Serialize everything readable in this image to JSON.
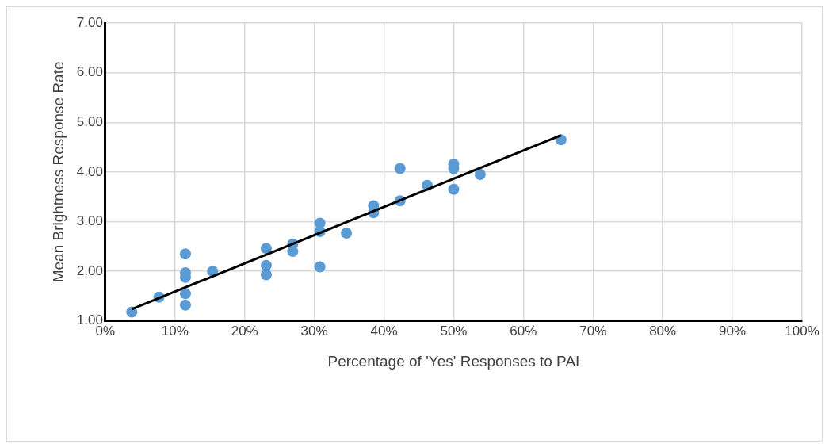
{
  "chart_data": {
    "type": "scatter",
    "xlabel": "Percentage of 'Yes' Responses to PAI",
    "ylabel": "Mean Brightness Response Rate",
    "x": [
      3.8,
      7.7,
      11.5,
      11.5,
      11.5,
      11.5,
      11.5,
      15.4,
      23.1,
      23.1,
      23.1,
      26.9,
      26.9,
      30.8,
      30.8,
      30.8,
      34.6,
      38.5,
      38.5,
      42.3,
      42.3,
      46.2,
      50,
      50,
      50,
      53.8,
      65.4
    ],
    "series": [
      {
        "color": "#5b9bd5",
        "values": [
          1.18,
          1.48,
          2.35,
          1.97,
          1.88,
          1.55,
          1.32,
          2.0,
          2.46,
          2.12,
          1.93,
          2.55,
          2.4,
          2.97,
          2.8,
          2.09,
          2.77,
          3.32,
          3.18,
          4.07,
          3.42,
          3.73,
          4.16,
          4.07,
          3.65,
          3.95,
          4.65
        ]
      },
      {
        "type": "line",
        "color": "#000000",
        "x": [
          3.8,
          65.4
        ],
        "values": [
          1.24,
          4.74
        ],
        "marker": "none"
      }
    ],
    "xlim": [
      0,
      100
    ],
    "xticks": [
      {
        "value": 0,
        "label": "0%"
      },
      {
        "value": 10,
        "label": "10%"
      },
      {
        "value": 20,
        "label": "20%"
      },
      {
        "value": 30,
        "label": "30%"
      },
      {
        "value": 40,
        "label": "40%"
      },
      {
        "value": 50,
        "label": "50%"
      },
      {
        "value": 60,
        "label": "60%"
      },
      {
        "value": 70,
        "label": "70%"
      },
      {
        "value": 80,
        "label": "80%"
      },
      {
        "value": 90,
        "label": "90%"
      },
      {
        "value": 100,
        "label": "100%"
      }
    ],
    "ylim": [
      1,
      7
    ],
    "yticks": [
      {
        "value": 1,
        "label": "1.00"
      },
      {
        "value": 2,
        "label": "2.00"
      },
      {
        "value": 3,
        "label": "3.00"
      },
      {
        "value": 4,
        "label": "4.00"
      },
      {
        "value": 5,
        "label": "5.00"
      },
      {
        "value": 6,
        "label": "6.00"
      },
      {
        "value": 7,
        "label": "7.00"
      }
    ],
    "grid": true,
    "legend": false,
    "marker": "circle"
  }
}
